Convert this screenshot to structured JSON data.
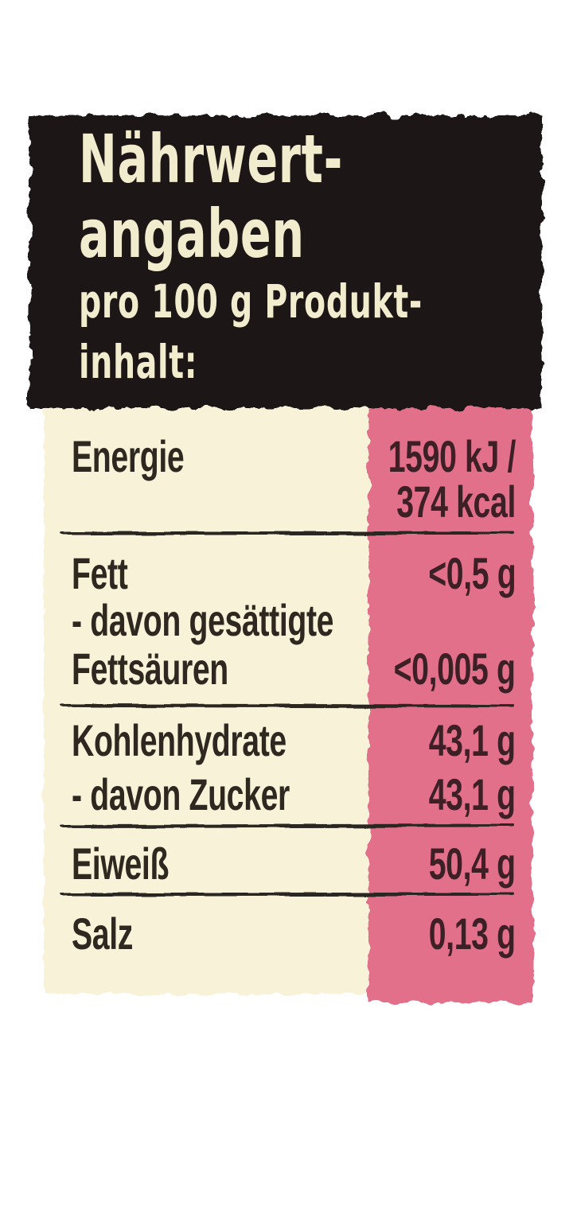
{
  "header": {
    "title_lines": [
      "Nährwert-",
      "angaben"
    ],
    "subtitle_lines": [
      "pro 100 g Produkt-",
      "inhalt:"
    ]
  },
  "table": {
    "lines": [
      {
        "label": "Energie",
        "value": "1590 kJ /"
      },
      {
        "label": "",
        "value": "374 kcal"
      },
      {
        "label": "Fett",
        "value": "<0,5 g"
      },
      {
        "label": "- davon gesättigte",
        "value": ""
      },
      {
        "label": "Fettsäuren",
        "value": "<0,005 g"
      },
      {
        "label": "Kohlenhydrate",
        "value": "43,1 g"
      },
      {
        "label": "- davon Zucker",
        "value": "43,1 g"
      },
      {
        "label": "Eiweiß",
        "value": "50,4 g"
      },
      {
        "label": "Salz",
        "value": "0,13 g"
      }
    ]
  },
  "colors": {
    "header_bg": "#1a1612",
    "header_text": "#f2ecce",
    "table_left_bg": "#f8f3d8",
    "table_right_bg": "#e36f8b",
    "label_text": "#2e2821",
    "value_text": "#3d2026",
    "divider": "#2b2520"
  }
}
